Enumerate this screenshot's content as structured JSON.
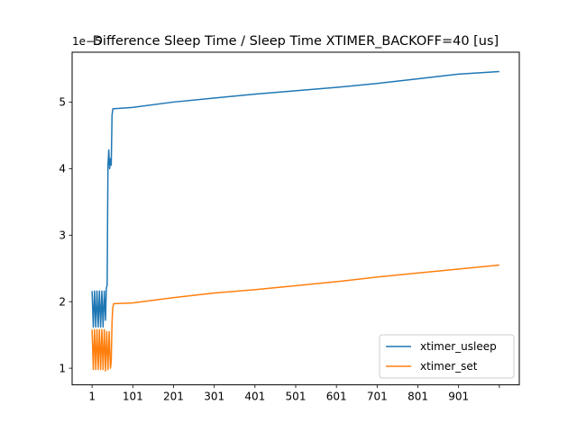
{
  "chart_data": {
    "type": "line",
    "title": "Difference Sleep Time / Sleep Time XTIMER_BACKOFF=40 [us]",
    "offset_text": "1e−5",
    "xlabel": "",
    "ylabel": "",
    "xlim": [
      -48,
      1050
    ],
    "ylim": [
      0.75,
      5.75
    ],
    "x_ticks": [
      1,
      101,
      201,
      301,
      401,
      501,
      601,
      701,
      801,
      901,
      1001
    ],
    "x_tick_labels": [
      "1",
      "101",
      "201",
      "301",
      "401",
      "501",
      "601",
      "701",
      "801",
      "901",
      ""
    ],
    "y_ticks": [
      1,
      2,
      3,
      4,
      5
    ],
    "y_tick_labels": [
      "1",
      "2",
      "3",
      "4",
      "5"
    ],
    "grid": false,
    "legend_position": "lower-right",
    "series": [
      {
        "name": "xtimer_usleep",
        "color": "#1f77b4",
        "points": [
          [
            1,
            2.16
          ],
          [
            4,
            1.62
          ],
          [
            7,
            2.16
          ],
          [
            10,
            1.62
          ],
          [
            13,
            2.16
          ],
          [
            16,
            1.62
          ],
          [
            19,
            2.16
          ],
          [
            22,
            1.62
          ],
          [
            25,
            2.16
          ],
          [
            28,
            1.62
          ],
          [
            31,
            2.16
          ],
          [
            34,
            1.72
          ],
          [
            36,
            2.2
          ],
          [
            38,
            2.25
          ],
          [
            40,
            4.05
          ],
          [
            42,
            4.28
          ],
          [
            44,
            4.0
          ],
          [
            46,
            4.15
          ],
          [
            48,
            4.05
          ],
          [
            50,
            4.8
          ],
          [
            52,
            4.9
          ],
          [
            100,
            4.92
          ],
          [
            200,
            5.0
          ],
          [
            300,
            5.06
          ],
          [
            400,
            5.12
          ],
          [
            500,
            5.17
          ],
          [
            600,
            5.22
          ],
          [
            700,
            5.28
          ],
          [
            800,
            5.35
          ],
          [
            900,
            5.42
          ],
          [
            1001,
            5.46
          ]
        ]
      },
      {
        "name": "xtimer_set",
        "color": "#ff7f0e",
        "points": [
          [
            1,
            1.58
          ],
          [
            4,
            0.98
          ],
          [
            7,
            1.58
          ],
          [
            10,
            0.98
          ],
          [
            13,
            1.58
          ],
          [
            16,
            0.98
          ],
          [
            19,
            1.58
          ],
          [
            22,
            0.98
          ],
          [
            25,
            1.58
          ],
          [
            28,
            0.98
          ],
          [
            31,
            1.58
          ],
          [
            34,
            0.96
          ],
          [
            37,
            1.55
          ],
          [
            40,
            0.98
          ],
          [
            43,
            1.55
          ],
          [
            46,
            1.0
          ],
          [
            48,
            1.1
          ],
          [
            50,
            1.7
          ],
          [
            52,
            1.92
          ],
          [
            54,
            1.97
          ],
          [
            100,
            1.98
          ],
          [
            200,
            2.06
          ],
          [
            300,
            2.13
          ],
          [
            400,
            2.18
          ],
          [
            500,
            2.24
          ],
          [
            600,
            2.3
          ],
          [
            700,
            2.37
          ],
          [
            800,
            2.43
          ],
          [
            900,
            2.49
          ],
          [
            1001,
            2.55
          ]
        ]
      }
    ]
  }
}
